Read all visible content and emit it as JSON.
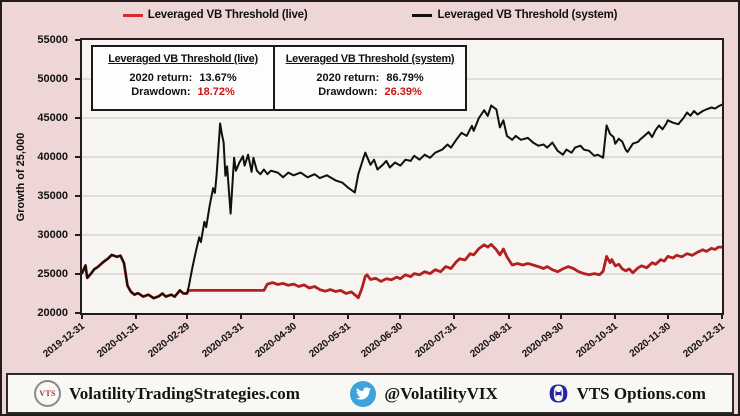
{
  "colors": {
    "page_bg": "#eed6d6",
    "plot_bg": "#f6f5f1",
    "gridline": "#d7d5d1",
    "border": "#241c1c",
    "live_line": "#b3201f",
    "system_line": "#12100b",
    "legend_live_dash": "#d42a2a",
    "negative_value_red": "#cc1414",
    "twitter_blue": "#3ea2dc",
    "theta_blue": "#2424a8",
    "vts_logo_red": "#a63535",
    "footer_bg": "#f8f8f5"
  },
  "legend": {
    "items": [
      {
        "label": "Leveraged VB Threshold  (live)",
        "color": "#d42a2a"
      },
      {
        "label": "Leveraged VB Threshold  (system)",
        "color": "#12100b"
      }
    ]
  },
  "info_boxes": [
    {
      "title": "Leveraged VB Threshold  (live)",
      "return_label": "2020 return:",
      "return_value": "13.67%",
      "drawdown_label": "Drawdown:",
      "drawdown_value": "18.72%"
    },
    {
      "title": "Leveraged VB Threshold  (system)",
      "return_label": "2020 return:",
      "return_value": "86.79%",
      "drawdown_label": "Drawdown:",
      "drawdown_value": "26.39%"
    }
  ],
  "chart_data": {
    "type": "line",
    "title": "",
    "xlabel": "",
    "ylabel": "Growth of 25,000",
    "ylim": [
      20000,
      55000
    ],
    "yticks": [
      20000,
      25000,
      30000,
      35000,
      40000,
      45000,
      50000,
      55000
    ],
    "gridlines": [
      25000,
      30000,
      35000,
      40000,
      45000,
      50000
    ],
    "grid": "horizontal",
    "legend_position": "top",
    "x_domain_days": [
      0,
      366
    ],
    "xtick_days": [
      0,
      31,
      60,
      91,
      121,
      152,
      182,
      213,
      244,
      274,
      305,
      335,
      366
    ],
    "xticklabels": [
      "2019-12-31",
      "2020-01-31",
      "2020-02-29",
      "2020-03-31",
      "2020-04-30",
      "2020-05-31",
      "2020-06-30",
      "2020-07-31",
      "2020-08-31",
      "2020-09-30",
      "2020-10-31",
      "2020-11-30",
      "2020-12-31"
    ],
    "series": [
      {
        "name": "Leveraged VB Threshold (live)",
        "color": "#b3201f",
        "stroke_width": 2.8,
        "points": [
          [
            0,
            25100
          ],
          [
            2,
            26100
          ],
          [
            3,
            24500
          ],
          [
            5,
            25000
          ],
          [
            7,
            25600
          ],
          [
            9,
            25900
          ],
          [
            12,
            26500
          ],
          [
            15,
            27000
          ],
          [
            17,
            27450
          ],
          [
            20,
            27200
          ],
          [
            22,
            27350
          ],
          [
            24,
            26400
          ],
          [
            26,
            23500
          ],
          [
            28,
            22700
          ],
          [
            30,
            22350
          ],
          [
            32,
            22550
          ],
          [
            35,
            22100
          ],
          [
            38,
            22350
          ],
          [
            41,
            21900
          ],
          [
            44,
            22150
          ],
          [
            46,
            22500
          ],
          [
            48,
            22100
          ],
          [
            51,
            22350
          ],
          [
            53,
            22100
          ],
          [
            56,
            22900
          ],
          [
            58,
            22500
          ],
          [
            60,
            22500
          ],
          [
            61,
            22900
          ],
          [
            104,
            22900
          ],
          [
            106,
            23700
          ],
          [
            109,
            23900
          ],
          [
            112,
            23650
          ],
          [
            115,
            23800
          ],
          [
            118,
            23550
          ],
          [
            121,
            23700
          ],
          [
            124,
            23400
          ],
          [
            127,
            23600
          ],
          [
            130,
            23200
          ],
          [
            133,
            23400
          ],
          [
            136,
            23000
          ],
          [
            139,
            22800
          ],
          [
            142,
            23000
          ],
          [
            145,
            22750
          ],
          [
            148,
            22900
          ],
          [
            151,
            22500
          ],
          [
            154,
            22700
          ],
          [
            156,
            22350
          ],
          [
            158,
            21950
          ],
          [
            160,
            23100
          ],
          [
            162,
            24700
          ],
          [
            163,
            24900
          ],
          [
            165,
            24300
          ],
          [
            168,
            24450
          ],
          [
            171,
            24050
          ],
          [
            174,
            24400
          ],
          [
            177,
            24250
          ],
          [
            180,
            24600
          ],
          [
            182,
            24400
          ],
          [
            185,
            24900
          ],
          [
            188,
            24650
          ],
          [
            190,
            25050
          ],
          [
            193,
            24900
          ],
          [
            196,
            25300
          ],
          [
            199,
            25050
          ],
          [
            202,
            25550
          ],
          [
            205,
            25300
          ],
          [
            208,
            25950
          ],
          [
            211,
            25700
          ],
          [
            214,
            26550
          ],
          [
            216,
            26950
          ],
          [
            219,
            26800
          ],
          [
            222,
            27600
          ],
          [
            224,
            27450
          ],
          [
            227,
            28250
          ],
          [
            230,
            28750
          ],
          [
            232,
            28450
          ],
          [
            234,
            28800
          ],
          [
            237,
            28100
          ],
          [
            239,
            27450
          ],
          [
            241,
            28200
          ],
          [
            243,
            27200
          ],
          [
            246,
            26150
          ],
          [
            249,
            26350
          ],
          [
            252,
            26150
          ],
          [
            255,
            26350
          ],
          [
            258,
            26150
          ],
          [
            261,
            25950
          ],
          [
            264,
            25700
          ],
          [
            266,
            25950
          ],
          [
            269,
            25550
          ],
          [
            272,
            25300
          ],
          [
            275,
            25650
          ],
          [
            278,
            25950
          ],
          [
            281,
            25700
          ],
          [
            284,
            25300
          ],
          [
            287,
            25050
          ],
          [
            290,
            24900
          ],
          [
            293,
            25050
          ],
          [
            296,
            24900
          ],
          [
            298,
            25350
          ],
          [
            300,
            27250
          ],
          [
            302,
            26450
          ],
          [
            303,
            26850
          ],
          [
            305,
            26050
          ],
          [
            307,
            26250
          ],
          [
            309,
            25650
          ],
          [
            311,
            25400
          ],
          [
            313,
            25650
          ],
          [
            315,
            25150
          ],
          [
            318,
            25800
          ],
          [
            320,
            26050
          ],
          [
            323,
            25800
          ],
          [
            326,
            26450
          ],
          [
            328,
            26250
          ],
          [
            331,
            26850
          ],
          [
            333,
            26650
          ],
          [
            335,
            27250
          ],
          [
            338,
            27050
          ],
          [
            340,
            27400
          ],
          [
            343,
            27200
          ],
          [
            346,
            27600
          ],
          [
            349,
            27400
          ],
          [
            352,
            27800
          ],
          [
            355,
            28100
          ],
          [
            357,
            27900
          ],
          [
            360,
            28300
          ],
          [
            362,
            28150
          ],
          [
            364,
            28450
          ],
          [
            366,
            28450
          ]
        ]
      },
      {
        "name": "Leveraged VB Threshold (system)",
        "color": "#12100b",
        "stroke_width": 2,
        "points": [
          [
            0,
            25100
          ],
          [
            2,
            26100
          ],
          [
            3,
            24500
          ],
          [
            5,
            25000
          ],
          [
            7,
            25600
          ],
          [
            9,
            25900
          ],
          [
            12,
            26500
          ],
          [
            15,
            27000
          ],
          [
            17,
            27450
          ],
          [
            20,
            27200
          ],
          [
            22,
            27350
          ],
          [
            24,
            26400
          ],
          [
            26,
            23500
          ],
          [
            28,
            22700
          ],
          [
            30,
            22350
          ],
          [
            32,
            22550
          ],
          [
            35,
            22100
          ],
          [
            38,
            22350
          ],
          [
            41,
            21900
          ],
          [
            44,
            22150
          ],
          [
            46,
            22500
          ],
          [
            48,
            22100
          ],
          [
            51,
            22350
          ],
          [
            53,
            22100
          ],
          [
            56,
            22900
          ],
          [
            58,
            22500
          ],
          [
            60,
            22500
          ],
          [
            61,
            23350
          ],
          [
            63,
            25700
          ],
          [
            65,
            27800
          ],
          [
            67,
            29700
          ],
          [
            68,
            29100
          ],
          [
            70,
            31700
          ],
          [
            71,
            31000
          ],
          [
            73,
            33800
          ],
          [
            75,
            36000
          ],
          [
            76,
            35400
          ],
          [
            77,
            37700
          ],
          [
            78,
            41000
          ],
          [
            79,
            44300
          ],
          [
            80,
            42900
          ],
          [
            81,
            41900
          ],
          [
            82,
            37600
          ],
          [
            83,
            38800
          ],
          [
            85,
            32750
          ],
          [
            87,
            39900
          ],
          [
            88,
            38250
          ],
          [
            90,
            39300
          ],
          [
            92,
            40100
          ],
          [
            93,
            38900
          ],
          [
            95,
            40300
          ],
          [
            97,
            38100
          ],
          [
            98,
            39900
          ],
          [
            100,
            38250
          ],
          [
            102,
            37800
          ],
          [
            104,
            38400
          ],
          [
            106,
            37800
          ],
          [
            108,
            38250
          ],
          [
            112,
            38000
          ],
          [
            115,
            37400
          ],
          [
            118,
            38000
          ],
          [
            121,
            37650
          ],
          [
            125,
            38000
          ],
          [
            129,
            37400
          ],
          [
            133,
            37800
          ],
          [
            136,
            37300
          ],
          [
            140,
            37650
          ],
          [
            145,
            37000
          ],
          [
            149,
            36700
          ],
          [
            152,
            36100
          ],
          [
            156,
            35450
          ],
          [
            158,
            37800
          ],
          [
            161,
            39900
          ],
          [
            162,
            40550
          ],
          [
            165,
            39000
          ],
          [
            167,
            39650
          ],
          [
            169,
            38400
          ],
          [
            172,
            39000
          ],
          [
            174,
            39500
          ],
          [
            176,
            38650
          ],
          [
            179,
            39300
          ],
          [
            182,
            38900
          ],
          [
            185,
            39650
          ],
          [
            188,
            39500
          ],
          [
            190,
            40150
          ],
          [
            193,
            39650
          ],
          [
            196,
            40300
          ],
          [
            199,
            39900
          ],
          [
            202,
            40550
          ],
          [
            206,
            40950
          ],
          [
            209,
            41600
          ],
          [
            211,
            41200
          ],
          [
            214,
            42200
          ],
          [
            217,
            43100
          ],
          [
            220,
            42700
          ],
          [
            223,
            44000
          ],
          [
            224,
            43350
          ],
          [
            227,
            45000
          ],
          [
            230,
            46000
          ],
          [
            232,
            45250
          ],
          [
            234,
            46600
          ],
          [
            237,
            46100
          ],
          [
            239,
            43800
          ],
          [
            241,
            44700
          ],
          [
            243,
            42700
          ],
          [
            246,
            42200
          ],
          [
            248,
            42700
          ],
          [
            251,
            42200
          ],
          [
            255,
            42450
          ],
          [
            258,
            41850
          ],
          [
            261,
            41450
          ],
          [
            264,
            41600
          ],
          [
            266,
            41200
          ],
          [
            269,
            41850
          ],
          [
            272,
            40800
          ],
          [
            275,
            40300
          ],
          [
            277,
            40950
          ],
          [
            280,
            40550
          ],
          [
            282,
            41200
          ],
          [
            285,
            41450
          ],
          [
            287,
            40950
          ],
          [
            290,
            40800
          ],
          [
            293,
            40150
          ],
          [
            295,
            40300
          ],
          [
            298,
            39900
          ],
          [
            300,
            44050
          ],
          [
            302,
            42950
          ],
          [
            304,
            42550
          ],
          [
            305,
            41700
          ],
          [
            307,
            42350
          ],
          [
            309,
            41950
          ],
          [
            311,
            40900
          ],
          [
            312,
            40650
          ],
          [
            315,
            41700
          ],
          [
            318,
            41950
          ],
          [
            319,
            42200
          ],
          [
            322,
            42800
          ],
          [
            324,
            43200
          ],
          [
            326,
            42550
          ],
          [
            328,
            43450
          ],
          [
            330,
            44050
          ],
          [
            332,
            43550
          ],
          [
            334,
            44200
          ],
          [
            335,
            44700
          ],
          [
            338,
            44400
          ],
          [
            341,
            44200
          ],
          [
            344,
            45000
          ],
          [
            346,
            45700
          ],
          [
            348,
            45300
          ],
          [
            350,
            45900
          ],
          [
            352,
            45450
          ],
          [
            355,
            45900
          ],
          [
            357,
            46100
          ],
          [
            360,
            46350
          ],
          [
            362,
            46200
          ],
          [
            364,
            46500
          ],
          [
            366,
            46700
          ]
        ]
      }
    ]
  },
  "footer": {
    "items": [
      {
        "icon": "vts-circle-logo",
        "icon_text": "VTS",
        "text": "VolatilityTradingStrategies.com"
      },
      {
        "icon": "twitter-bird",
        "text": "@VolatilityVIX"
      },
      {
        "icon": "theta-logo",
        "icon_text": "Θ",
        "text": "VTS Options.com"
      }
    ]
  }
}
